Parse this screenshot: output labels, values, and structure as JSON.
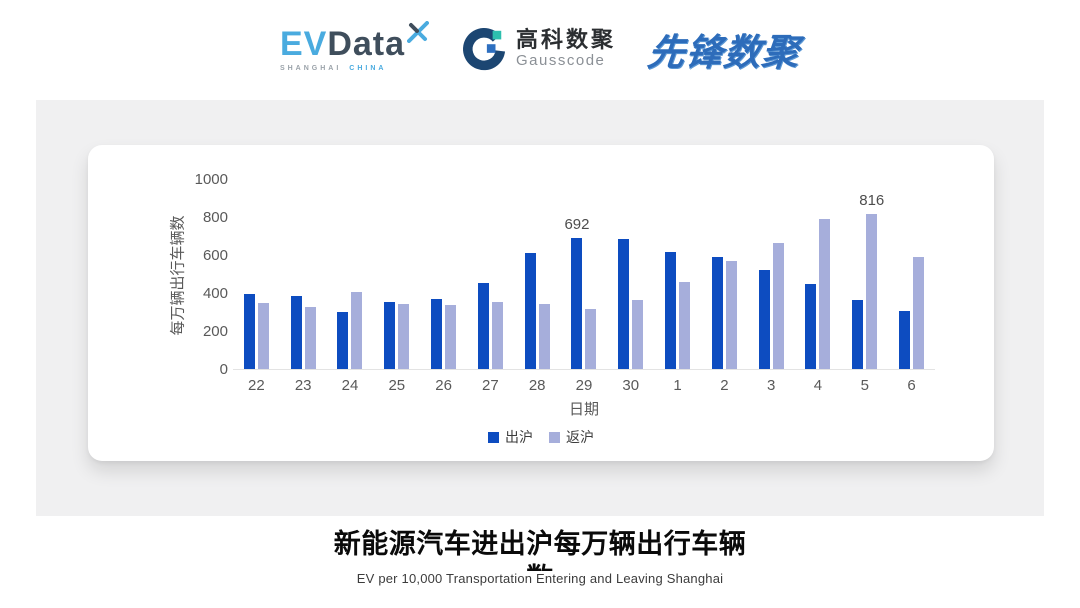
{
  "header": {
    "evdata_logo": {
      "ev": "EV",
      "data": "Data",
      "tagline_left": "SHANGHAI",
      "tagline_right": "CHINA"
    },
    "gausscode_logo": {
      "name_cn": "高科数聚",
      "name_en": "Gausscode"
    },
    "pioneer_logo": {
      "text": "先锋数聚"
    }
  },
  "chart_data": {
    "type": "bar",
    "title": "新能源汽车进出沪每万辆出行车辆数",
    "subtitle": "EV per 10,000 Transportation Entering and Leaving Shanghai",
    "xlabel": "日期",
    "ylabel": "每万辆出行车辆数",
    "ylim": [
      0,
      1000
    ],
    "yticks": [
      0,
      200,
      400,
      600,
      800,
      1000
    ],
    "grid": false,
    "legend_position": "bottom",
    "categories": [
      "22",
      "23",
      "24",
      "25",
      "26",
      "27",
      "28",
      "29",
      "30",
      "1",
      "2",
      "3",
      "4",
      "5",
      "6"
    ],
    "series": [
      {
        "name": "出沪",
        "color": "#0d4cc0",
        "values": [
          395,
          386,
          300,
          352,
          368,
          455,
          612,
          692,
          685,
          618,
          592,
          522,
          445,
          365,
          305
        ]
      },
      {
        "name": "返沪",
        "color": "#a6aedb",
        "values": [
          348,
          325,
          406,
          343,
          336,
          352,
          343,
          318,
          362,
          458,
          570,
          665,
          792,
          816,
          590
        ]
      }
    ],
    "data_labels": [
      {
        "series_index": 0,
        "category_index": 7,
        "text": "692"
      },
      {
        "series_index": 1,
        "category_index": 13,
        "text": "816"
      }
    ]
  },
  "footer": {
    "title": "新能源汽车进出沪每万辆出行车辆数",
    "subtitle": "EV per 10,000 Transportation Entering and Leaving Shanghai"
  },
  "colors": {
    "series_out": "#0d4cc0",
    "series_return": "#a6aedb",
    "panel_bg": "#f0f0f1",
    "axis_text": "#595959",
    "evdata_blue": "#4aabdf",
    "evdata_dark": "#3f4e5c",
    "gauss_navy": "#1c4672",
    "gauss_teal": "#2dbfae",
    "pioneer_blue": "#2d6cba"
  }
}
